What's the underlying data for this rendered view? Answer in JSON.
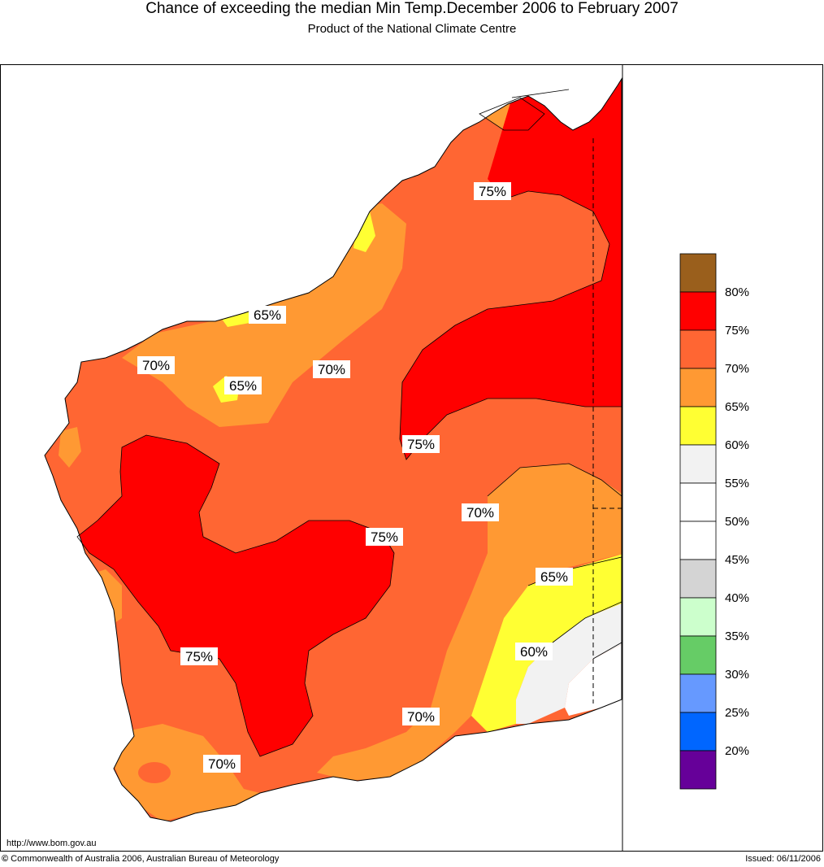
{
  "title": "Chance of exceeding the median Min Temp.December 2006 to February 2007",
  "subtitle": "Product of the National Climate Centre",
  "legend": {
    "labels": [
      "80%",
      "75%",
      "70%",
      "65%",
      "60%",
      "55%",
      "50%",
      "45%",
      "40%",
      "35%",
      "30%",
      "25%",
      "20%"
    ],
    "swatch_colors": [
      "#9a5f1c",
      "#ff0000",
      "#ff6633",
      "#ff9933",
      "#ffff33",
      "#f2f2f2",
      "#ffffff",
      "#ffffff",
      "#d4d4d4",
      "#ccffcc",
      "#66cc66",
      "#6699ff",
      "#0066ff",
      "#660099"
    ]
  },
  "contour_labels": [
    "75%",
    "65%",
    "70%",
    "65%",
    "70%",
    "75%",
    "70%",
    "75%",
    "65%",
    "60%",
    "75%",
    "70%",
    "70%"
  ],
  "footer": {
    "url": "http://www.bom.gov.au",
    "copyright": "Commonwealth of Australia 2006, Australian Bureau of Meteorology",
    "copyright_symbol": "©",
    "issued": "Issued: 06/11/2006"
  },
  "colors": {
    "very_high": "#ff0000",
    "high": "#ff6633",
    "moderate_high": "#ff9933",
    "moderate": "#ffff33",
    "neutral_light": "#f2f2f2",
    "neutral": "#ffffff"
  }
}
